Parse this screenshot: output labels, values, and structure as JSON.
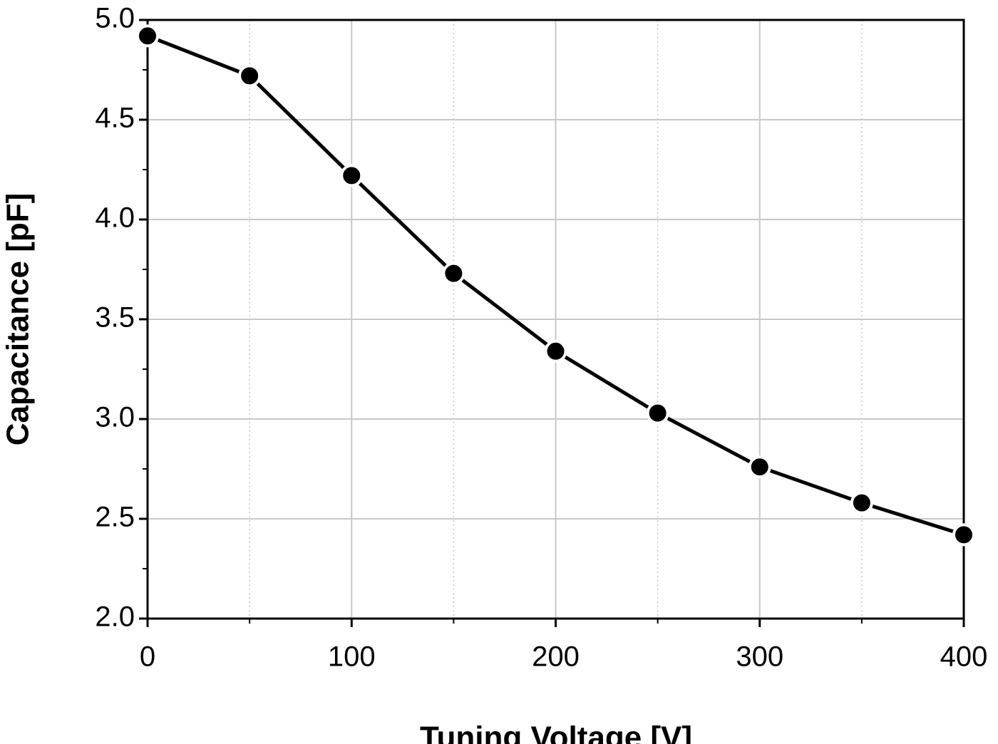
{
  "chart_data": {
    "type": "line",
    "xlabel": "Tuning Voltage [V]",
    "ylabel": "Capacitance [pF]",
    "x": [
      0,
      50,
      100,
      150,
      200,
      250,
      300,
      350,
      400
    ],
    "series": [
      {
        "color": "#000000",
        "values": [
          4.92,
          4.72,
          4.22,
          3.73,
          3.34,
          3.03,
          2.76,
          2.58,
          2.42
        ]
      }
    ],
    "xlim": [
      0,
      400
    ],
    "xticks": [
      0,
      100,
      200,
      300,
      400
    ],
    "xminor_ticks": [
      50,
      150,
      250,
      350
    ],
    "ylim": [
      2,
      5
    ],
    "yticks": [
      {
        "value": 2,
        "label": "2.0"
      },
      2.5,
      {
        "value": 3,
        "label": "3.0"
      },
      3.5,
      {
        "value": 4,
        "label": "4.0"
      },
      4.5,
      {
        "value": 5,
        "label": "5.0"
      }
    ],
    "yminor_ticks": [
      2.25,
      2.75,
      3.25,
      3.75,
      4.25,
      4.75
    ],
    "grid": true
  }
}
